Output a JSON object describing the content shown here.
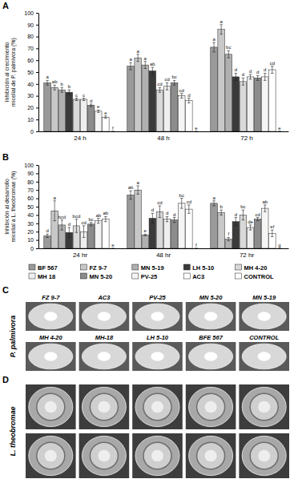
{
  "chart_data": [
    {
      "type": "bar",
      "title": "A",
      "ylabel": "Inhibición al crecimiento micelial de P. palmivora (%)",
      "categories": [
        "24 h",
        "48 h",
        "72 h"
      ],
      "ylim": [
        0,
        100
      ],
      "yticks": [
        0,
        10,
        20,
        30,
        40,
        50,
        60,
        70,
        80,
        90,
        100
      ],
      "grid": false,
      "series": [
        {
          "color": "#9a9a9a",
          "values": [
            41,
            55,
            71
          ],
          "errors": [
            2,
            3,
            4
          ],
          "letters": [
            "a",
            "a",
            "a"
          ]
        },
        {
          "color": "#c8c8c8",
          "values": [
            37,
            62,
            86
          ],
          "errors": [
            2,
            3,
            4
          ],
          "letters": [
            "ab",
            "a",
            "a"
          ]
        },
        {
          "color": "#b0b0b0",
          "values": [
            35,
            56,
            65
          ],
          "errors": [
            2,
            3,
            3
          ],
          "letters": [
            "b",
            "a",
            "bc"
          ]
        },
        {
          "color": "#3a3a3a",
          "values": [
            33,
            51,
            46
          ],
          "errors": [
            2,
            3,
            3
          ],
          "letters": [
            "b",
            "ab",
            "d"
          ]
        },
        {
          "color": "#d9d9d9",
          "values": [
            27,
            35,
            42
          ],
          "errors": [
            1,
            2,
            3
          ],
          "letters": [
            "c",
            "cd",
            "d"
          ]
        },
        {
          "color": "#efefef",
          "values": [
            27,
            38,
            46
          ],
          "errors": [
            1,
            3,
            2
          ],
          "letters": [
            "c",
            "cd",
            "d"
          ]
        },
        {
          "color": "#8c8c8c",
          "values": [
            22,
            41,
            45
          ],
          "errors": [
            1,
            2,
            2
          ],
          "letters": [
            "d",
            "bc",
            "d"
          ]
        },
        {
          "color": "#f5f5f5",
          "values": [
            17,
            30,
            46
          ],
          "errors": [
            1,
            2,
            3
          ],
          "letters": [
            "e",
            "cd",
            "d"
          ]
        },
        {
          "color": "#ffffff",
          "values": [
            12,
            26,
            52
          ],
          "errors": [
            1,
            2,
            3
          ],
          "letters": [
            "e",
            "d",
            "cd"
          ]
        },
        {
          "color": "#ffffff",
          "values": [
            0,
            0,
            0
          ],
          "errors": [
            0,
            0,
            0
          ],
          "letters": [
            "f",
            "e",
            "e"
          ]
        }
      ]
    },
    {
      "type": "bar",
      "title": "B",
      "ylabel": "Inhibición al desarrollo micelial a L. theobromae (%)",
      "categories": [
        "24 hr",
        "48 hr",
        "72 hr"
      ],
      "ylim": [
        0,
        100
      ],
      "yticks": [
        0,
        10,
        20,
        30,
        40,
        50,
        60,
        70,
        80,
        90,
        100
      ],
      "grid": false,
      "legend": "bottom",
      "series": [
        {
          "name": "BF 567",
          "color": "#9a9a9a",
          "values": [
            15,
            64,
            54
          ],
          "errors": [
            2,
            5,
            3
          ],
          "letters": [
            "d",
            "ab",
            "a"
          ]
        },
        {
          "name": "FZ 9-7",
          "color": "#c8c8c8",
          "values": [
            45,
            70,
            43
          ],
          "errors": [
            12,
            5,
            3
          ],
          "letters": [
            "a",
            "a",
            "b"
          ]
        },
        {
          "name": "MN 5-19",
          "color": "#b0b0b0",
          "values": [
            28,
            16,
            11
          ],
          "errors": [
            6,
            1,
            2
          ],
          "letters": [
            "bcd",
            "e",
            "f"
          ]
        },
        {
          "name": "LH 5-10",
          "color": "#3a3a3a",
          "values": [
            19,
            36,
            32
          ],
          "errors": [
            6,
            6,
            5
          ],
          "letters": [
            "d",
            "d",
            "d"
          ]
        },
        {
          "name": "MH 4-20",
          "color": "#d9d9d9",
          "values": [
            27,
            44,
            40
          ],
          "errors": [
            8,
            7,
            6
          ],
          "letters": [
            "bcd",
            "cd",
            "bc"
          ]
        },
        {
          "name": "MH 18",
          "color": "#efefef",
          "values": [
            20,
            35,
            25
          ],
          "errors": [
            7,
            3,
            3
          ],
          "letters": [
            "cd",
            "d",
            "de"
          ]
        },
        {
          "name": "MN 5-20",
          "color": "#8c8c8c",
          "values": [
            29,
            34,
            35
          ],
          "errors": [
            2,
            3,
            2
          ],
          "letters": [
            "bc",
            "d",
            "cd"
          ]
        },
        {
          "name": "PV-25",
          "color": "#f5f5f5",
          "values": [
            33,
            54,
            48
          ],
          "errors": [
            3,
            6,
            4
          ],
          "letters": [
            "ab",
            "bc",
            "ab"
          ]
        },
        {
          "name": "AC3",
          "color": "#ffffff",
          "values": [
            35,
            47,
            18
          ],
          "errors": [
            3,
            5,
            4
          ],
          "letters": [
            "ab",
            "cd",
            "ef"
          ]
        },
        {
          "name": "CONTROL",
          "color": "#ffffff",
          "values": [
            0,
            0,
            0
          ],
          "errors": [
            0,
            0,
            0
          ],
          "letters": [
            "e",
            "f",
            "g"
          ]
        }
      ]
    }
  ],
  "panels": [
    {
      "title": "C",
      "row_label": "P. palmivora",
      "labels": [
        "FZ 9-7",
        "AC3",
        "PV-25",
        "MN 5-20",
        "MN 5-19",
        "MH 4-20",
        "MH-18",
        "LH 5-10",
        "BFE 567",
        "CONTROL"
      ]
    },
    {
      "title": "D",
      "row_label": "L. theobromae"
    }
  ]
}
